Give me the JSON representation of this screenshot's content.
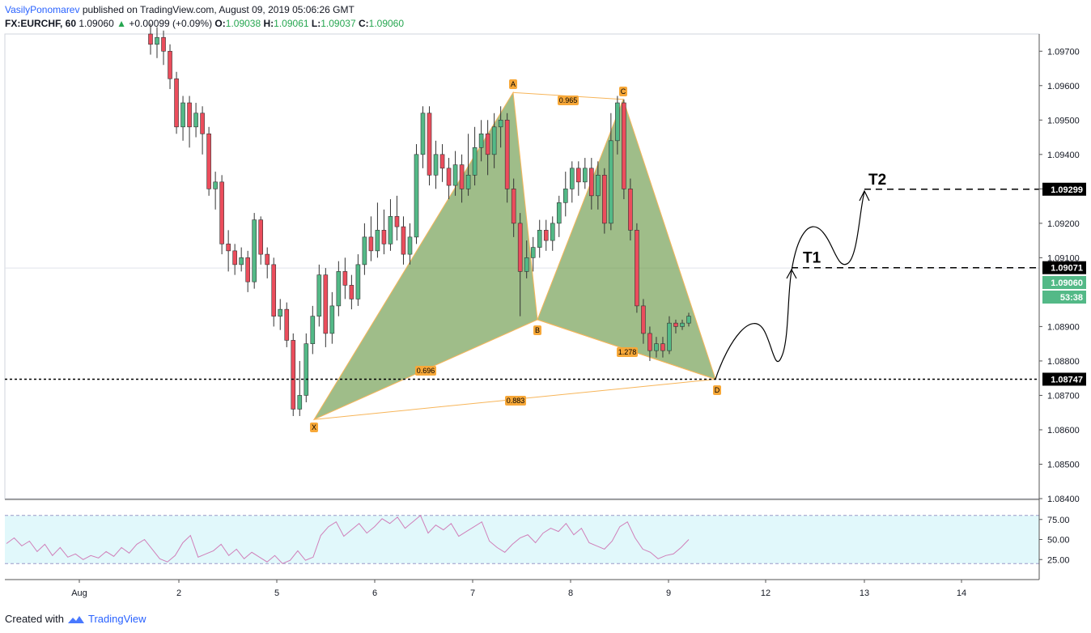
{
  "header": {
    "author": "VasilyPonomarev",
    "published_text": "published on TradingView.com, August 09, 2019 05:06:26 GMT",
    "symbol": "FX:EURCHF, 60",
    "last": "1.09060",
    "change_arrow": "▲",
    "change": "+0.00099 (+0.09%)",
    "o_label": "O:",
    "o_value": "1.09038",
    "h_label": "H:",
    "h_value": "1.09061",
    "l_label": "L:",
    "l_value": "1.09037",
    "c_label": "C:",
    "c_value": "1.09060"
  },
  "footer": {
    "created_with": "Created with",
    "brand": "TradingView",
    "logo_icon": "tradingview-logo-icon"
  },
  "colors": {
    "up": "#53b987",
    "down": "#eb4d5c",
    "pattern_fill": "#6b9a4a",
    "pattern_line": "#f7b559",
    "rsi": "#d07fb9",
    "rsi_band": "#e1f8fb"
  },
  "chart_data": {
    "type": "candlestick",
    "symbol": "FX:EURCHF",
    "interval": "60",
    "ylim": [
      1.084,
      1.0975
    ],
    "price_axis_ticks": [
      "1.09700",
      "1.09600",
      "1.09500",
      "1.09400",
      "1.09300",
      "1.09200",
      "1.09100",
      "1.08900",
      "1.08800",
      "1.08700",
      "1.08600",
      "1.08500",
      "1.08400"
    ],
    "x_axis_ticks": [
      "Aug",
      "2",
      "5",
      "6",
      "7",
      "8",
      "9",
      "12",
      "13",
      "14"
    ],
    "price_labels": [
      {
        "value": "1.09299",
        "style": "black"
      },
      {
        "value": "1.09071",
        "style": "black"
      },
      {
        "value": "1.09060",
        "style": "green"
      },
      {
        "value": "53:38",
        "style": "green"
      },
      {
        "value": "1.08747",
        "style": "black"
      }
    ],
    "horizontal_lines": [
      {
        "price": 1.09299,
        "style": "dashed",
        "label": "T2"
      },
      {
        "price": 1.09071,
        "style": "dashed",
        "label": "T1"
      },
      {
        "price": 1.08747,
        "style": "dotted"
      }
    ],
    "pattern": {
      "points": [
        {
          "label": "X",
          "price": 1.0863
        },
        {
          "label": "A",
          "price": 1.0958
        },
        {
          "label": "B",
          "price": 1.0892
        },
        {
          "label": "C",
          "price": 1.0956
        },
        {
          "label": "D",
          "price": 1.08747
        }
      ],
      "ratios": [
        {
          "label": "0.696",
          "between": "XA-AB"
        },
        {
          "label": "0.965",
          "between": "AB-BC"
        },
        {
          "label": "1.278",
          "between": "BC-CD"
        },
        {
          "label": "0.883",
          "between": "XA-AD"
        }
      ]
    },
    "candles": [
      [
        1.0975,
        1.0972,
        1.0978,
        1.0969
      ],
      [
        1.0972,
        1.0974,
        1.0977,
        1.0968
      ],
      [
        1.0974,
        1.097,
        1.0976,
        1.0966
      ],
      [
        1.097,
        1.0962,
        1.0972,
        1.0959
      ],
      [
        1.0962,
        1.0948,
        1.0964,
        1.0946
      ],
      [
        1.0948,
        1.0955,
        1.0957,
        1.0944
      ],
      [
        1.0955,
        1.0948,
        1.0957,
        1.0942
      ],
      [
        1.0948,
        1.0952,
        1.0955,
        1.0945
      ],
      [
        1.0952,
        1.0946,
        1.0954,
        1.094
      ],
      [
        1.0946,
        1.093,
        1.0948,
        1.0928
      ],
      [
        1.093,
        1.0932,
        1.0935,
        1.0924
      ],
      [
        1.0932,
        1.0914,
        1.0934,
        1.0911
      ],
      [
        1.0914,
        1.0912,
        1.0918,
        1.0906
      ],
      [
        1.0912,
        1.0908,
        1.0914,
        1.0905
      ],
      [
        1.0908,
        1.091,
        1.0913,
        1.0906
      ],
      [
        1.091,
        1.0903,
        1.0912,
        1.09
      ],
      [
        1.0903,
        1.0921,
        1.0923,
        1.0901
      ],
      [
        1.0921,
        1.0911,
        1.0922,
        1.0908
      ],
      [
        1.0911,
        1.0908,
        1.0913,
        1.0904
      ],
      [
        1.0908,
        1.0893,
        1.091,
        1.089
      ],
      [
        1.0893,
        1.0895,
        1.0898,
        1.0889
      ],
      [
        1.0895,
        1.0886,
        1.0897,
        1.0884
      ],
      [
        1.0886,
        1.0866,
        1.0888,
        1.0864
      ],
      [
        1.0866,
        1.087,
        1.088,
        1.0864
      ],
      [
        1.087,
        1.0885,
        1.0888,
        1.0868
      ],
      [
        1.0885,
        1.0893,
        1.0896,
        1.0882
      ],
      [
        1.0893,
        1.0905,
        1.0908,
        1.089
      ],
      [
        1.0905,
        1.0888,
        1.0907,
        1.0884
      ],
      [
        1.0888,
        1.0896,
        1.09,
        1.0885
      ],
      [
        1.0896,
        1.0906,
        1.0909,
        1.0893
      ],
      [
        1.0906,
        1.0902,
        1.091,
        1.0898
      ],
      [
        1.0902,
        1.0898,
        1.0905,
        1.0895
      ],
      [
        1.0898,
        1.0908,
        1.0911,
        1.0896
      ],
      [
        1.0908,
        1.0916,
        1.092,
        1.0905
      ],
      [
        1.0916,
        1.0912,
        1.0922,
        1.0909
      ],
      [
        1.0912,
        1.0918,
        1.0926,
        1.091
      ],
      [
        1.0918,
        1.0914,
        1.0924,
        1.0911
      ],
      [
        1.0914,
        1.0922,
        1.0927,
        1.0912
      ],
      [
        1.0922,
        1.0919,
        1.0928,
        1.0915
      ],
      [
        1.0919,
        1.0911,
        1.0922,
        1.0908
      ],
      [
        1.0911,
        1.0916,
        1.092,
        1.0908
      ],
      [
        1.0916,
        1.094,
        1.0943,
        1.0914
      ],
      [
        1.094,
        1.0952,
        1.0954,
        1.0936
      ],
      [
        1.0952,
        1.0934,
        1.0954,
        1.0931
      ],
      [
        1.0934,
        1.094,
        1.0944,
        1.093
      ],
      [
        1.094,
        1.0936,
        1.0943,
        1.0932
      ],
      [
        1.0936,
        1.0931,
        1.0939,
        1.0927
      ],
      [
        1.0931,
        1.0937,
        1.0941,
        1.0928
      ],
      [
        1.0937,
        1.093,
        1.094,
        1.0926
      ],
      [
        1.093,
        1.0934,
        1.0946,
        1.0928
      ],
      [
        1.0934,
        1.0942,
        1.0948,
        1.0931
      ],
      [
        1.0942,
        1.0946,
        1.095,
        1.0938
      ],
      [
        1.0946,
        1.094,
        1.095,
        1.0934
      ],
      [
        1.094,
        1.0948,
        1.0952,
        1.0936
      ],
      [
        1.0948,
        1.095,
        1.0954,
        1.0942
      ],
      [
        1.095,
        1.093,
        1.0952,
        1.0926
      ],
      [
        1.093,
        1.092,
        1.0933,
        1.0916
      ],
      [
        1.092,
        1.0906,
        1.0923,
        1.0893
      ],
      [
        1.0906,
        1.091,
        1.0915,
        1.0904
      ],
      [
        1.091,
        1.0913,
        1.0916,
        1.0906
      ],
      [
        1.0913,
        1.0918,
        1.0921,
        1.091
      ],
      [
        1.0918,
        1.0915,
        1.0921,
        1.0912
      ],
      [
        1.0915,
        1.092,
        1.0922,
        1.0912
      ],
      [
        1.092,
        1.0926,
        1.0928,
        1.0916
      ],
      [
        1.0926,
        1.093,
        1.0935,
        1.0922
      ],
      [
        1.093,
        1.0936,
        1.0938,
        1.0926
      ],
      [
        1.0936,
        1.0932,
        1.0938,
        1.0928
      ],
      [
        1.0932,
        1.0936,
        1.0939,
        1.093
      ],
      [
        1.0936,
        1.0928,
        1.0939,
        1.0924
      ],
      [
        1.0928,
        1.0934,
        1.0938,
        1.0924
      ],
      [
        1.0934,
        1.092,
        1.0936,
        1.0917
      ],
      [
        1.092,
        1.0944,
        1.0952,
        1.0918
      ],
      [
        1.0944,
        1.0955,
        1.0957,
        1.094
      ],
      [
        1.0955,
        1.093,
        1.0956,
        1.0927
      ],
      [
        1.093,
        1.0918,
        1.0933,
        1.0915
      ],
      [
        1.0918,
        1.0896,
        1.092,
        1.0894
      ],
      [
        1.0896,
        1.0888,
        1.0898,
        1.0885
      ],
      [
        1.0888,
        1.0883,
        1.089,
        1.088
      ],
      [
        1.0883,
        1.0885,
        1.0887,
        1.0881
      ],
      [
        1.0885,
        1.0883,
        1.0887,
        1.0881
      ],
      [
        1.0883,
        1.0891,
        1.0893,
        1.0882
      ],
      [
        1.0891,
        1.089,
        1.0892,
        1.0888
      ],
      [
        1.089,
        1.0891,
        1.0892,
        1.0889
      ],
      [
        1.0891,
        1.0893,
        1.0894,
        1.089
      ]
    ],
    "rsi": {
      "ticks": [
        "75.00",
        "50.00",
        "25.00"
      ],
      "upper": 80,
      "lower": 20,
      "values": [
        45,
        52,
        42,
        48,
        35,
        44,
        30,
        40,
        28,
        32,
        25,
        30,
        27,
        35,
        29,
        40,
        33,
        44,
        50,
        38,
        26,
        22,
        30,
        46,
        55,
        28,
        32,
        36,
        44,
        30,
        38,
        26,
        34,
        28,
        22,
        30,
        20,
        24,
        36,
        24,
        28,
        55,
        66,
        72,
        54,
        62,
        70,
        58,
        66,
        76,
        70,
        78,
        64,
        72,
        80,
        58,
        68,
        62,
        70,
        54,
        60,
        66,
        72,
        48,
        40,
        34,
        44,
        52,
        56,
        46,
        58,
        64,
        60,
        70,
        56,
        64,
        46,
        42,
        38,
        48,
        66,
        72,
        52,
        38,
        34,
        26,
        30,
        32,
        40,
        50
      ]
    }
  }
}
